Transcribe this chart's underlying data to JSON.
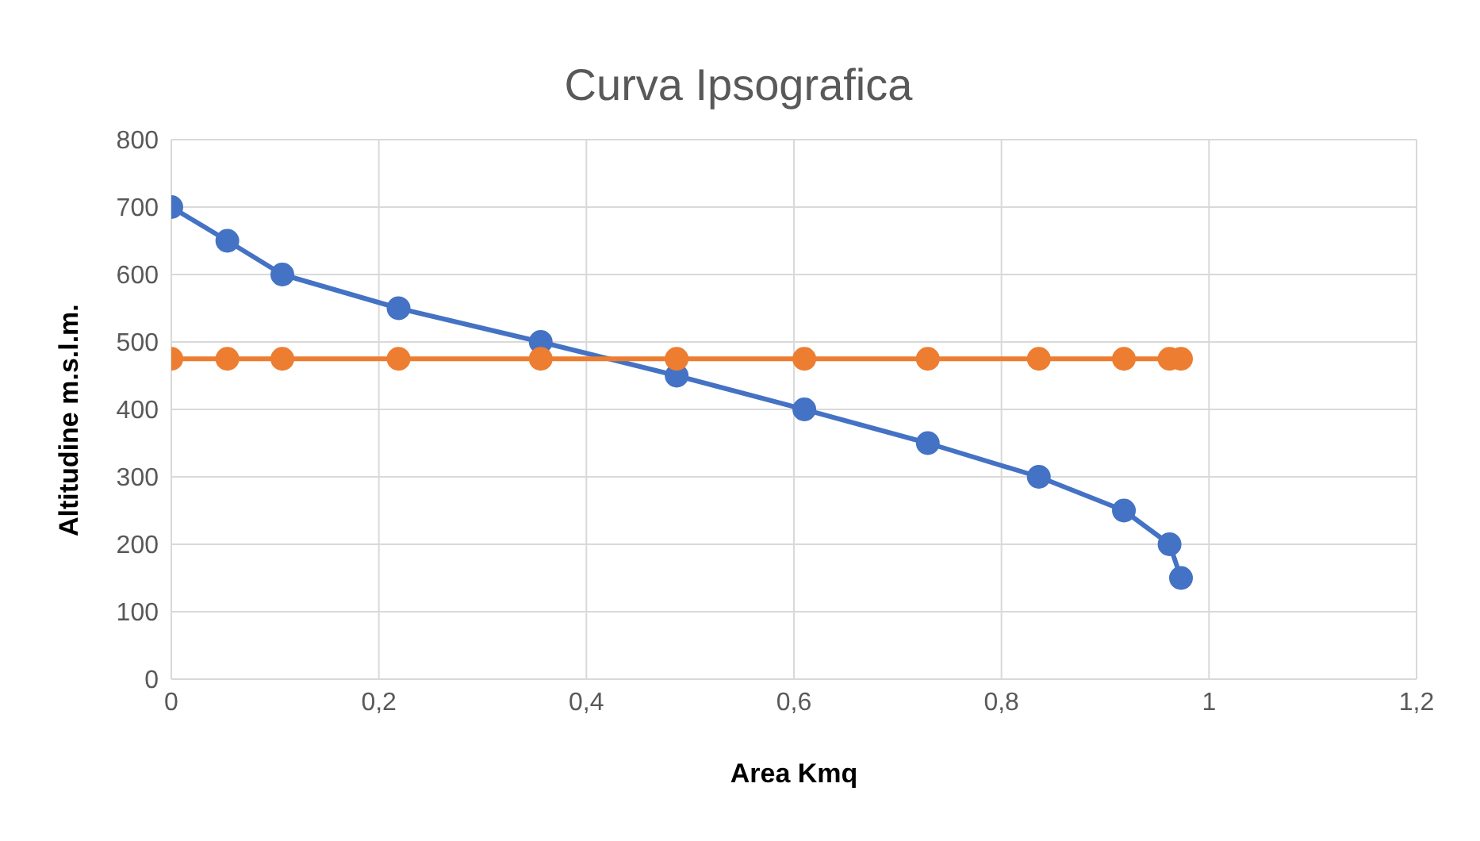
{
  "chart_data": {
    "type": "line",
    "title": "Curva Ipsografica",
    "xlabel": "Area Kmq",
    "ylabel": "Altitudine m.s.l.m.",
    "series": [
      {
        "color": "#4472c4",
        "x": [
          0,
          0.054,
          0.107,
          0.219,
          0.356,
          0.487,
          0.61,
          0.729,
          0.836,
          0.918,
          0.962,
          0.973
        ],
        "values": [
          700,
          650,
          600,
          550,
          500,
          450,
          400,
          350,
          300,
          250,
          200,
          150
        ]
      },
      {
        "color": "#ed7d31",
        "x": [
          0,
          0.054,
          0.107,
          0.219,
          0.356,
          0.487,
          0.61,
          0.729,
          0.836,
          0.918,
          0.962,
          0.973
        ],
        "values": [
          475,
          475,
          475,
          475,
          475,
          475,
          475,
          475,
          475,
          475,
          475,
          475
        ]
      }
    ],
    "xlim": [
      0,
      1.2
    ],
    "xticks": [
      0,
      {
        "value": 0.2,
        "label": "0,2"
      },
      {
        "value": 0.4,
        "label": "0,4"
      },
      {
        "value": 0.6,
        "label": "0,6"
      },
      {
        "value": 0.8,
        "label": "0,8"
      },
      1,
      {
        "value": 1.2,
        "label": "1,2"
      }
    ],
    "ylim": [
      0,
      800
    ],
    "yticks": [
      0,
      100,
      200,
      300,
      400,
      500,
      600,
      700,
      800
    ],
    "grid": true,
    "marker": "circle",
    "line_style": "solid",
    "legend": false
  }
}
